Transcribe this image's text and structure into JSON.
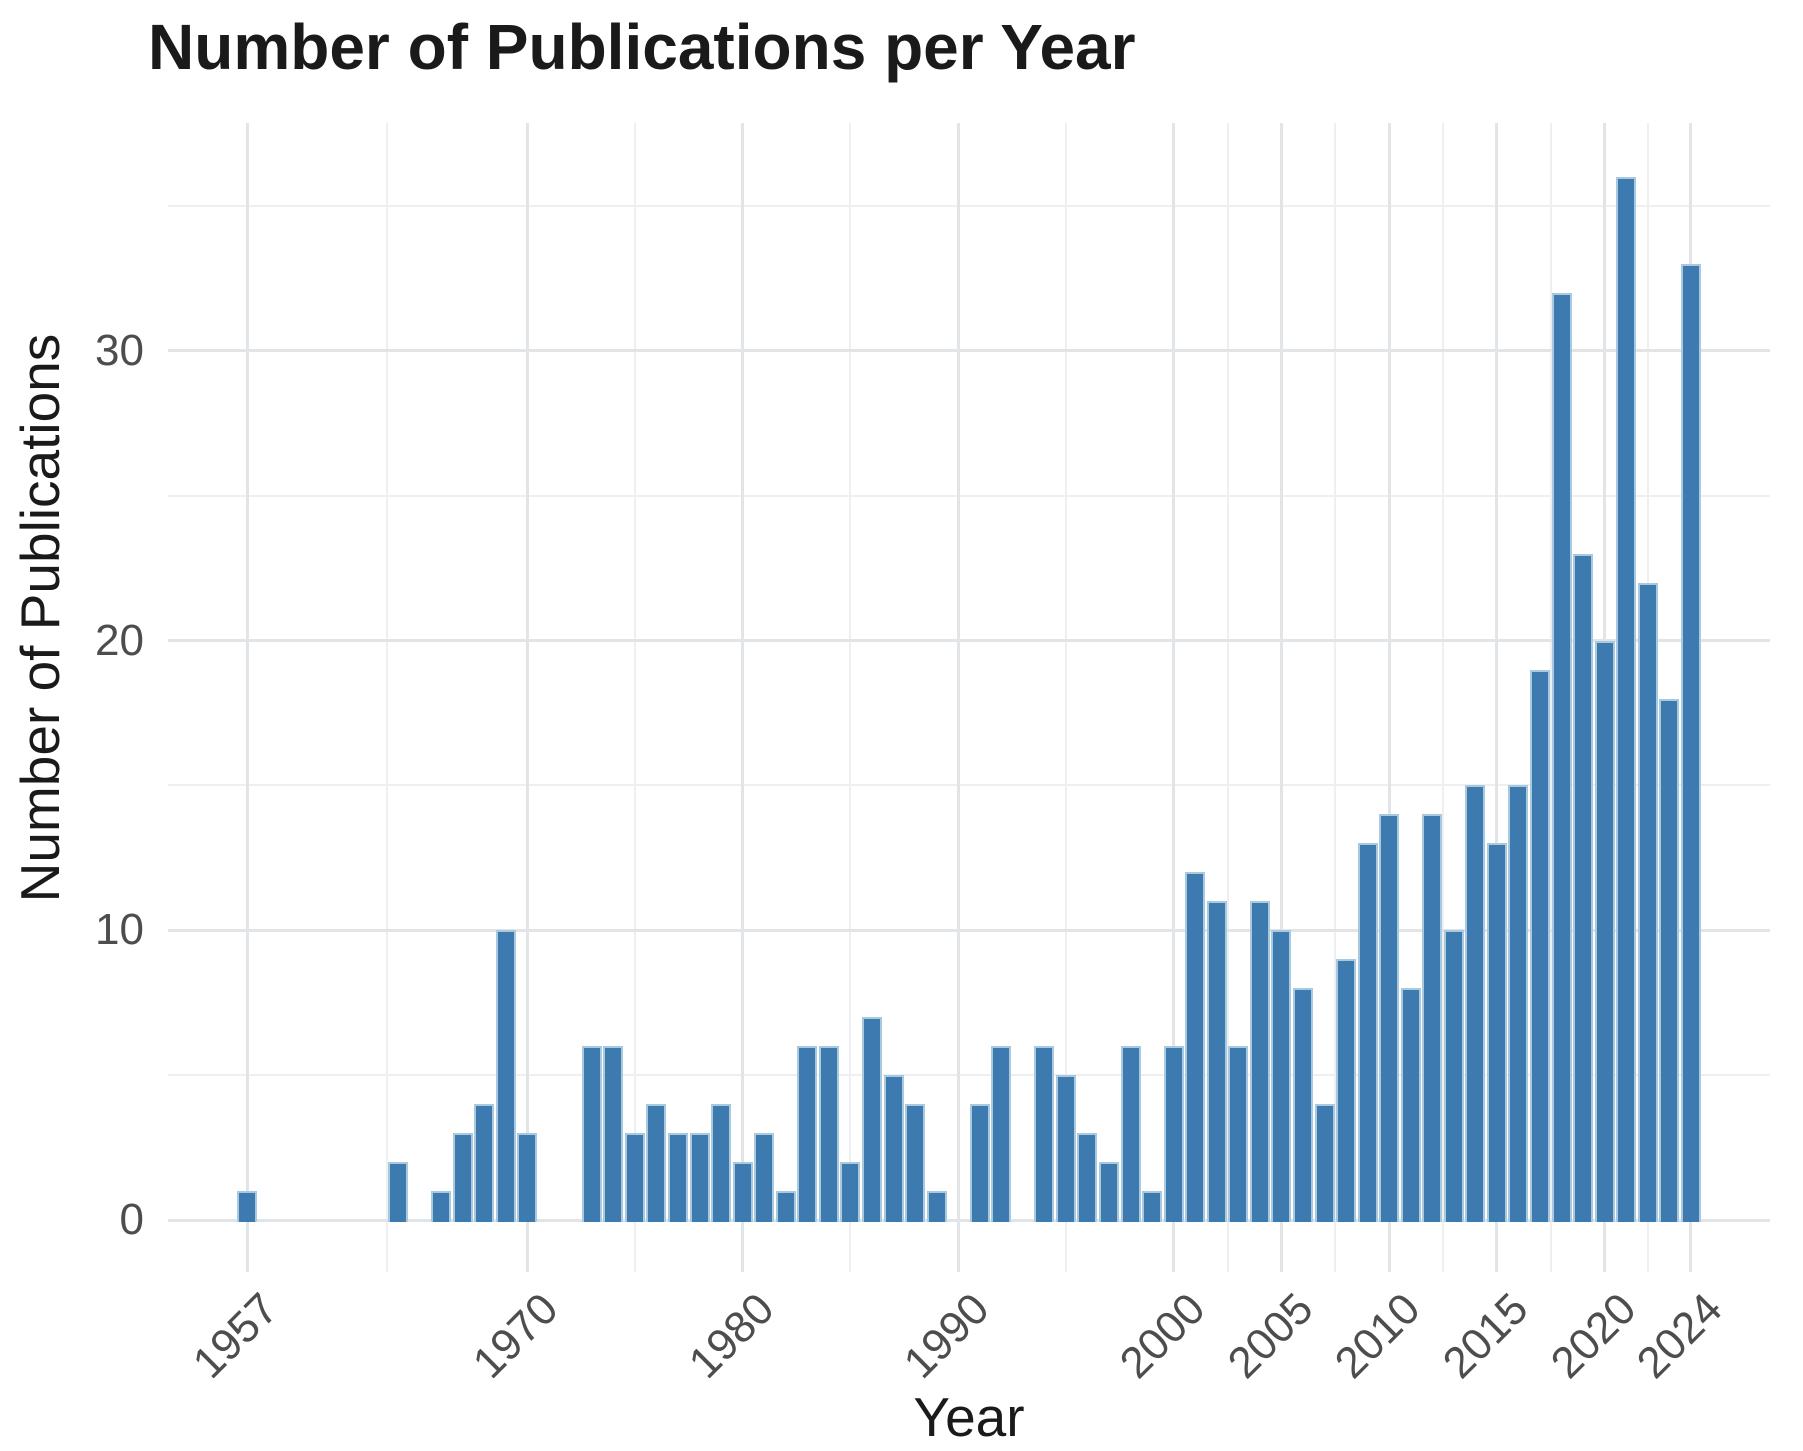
{
  "title": "Number of Publications per Year",
  "chart_data": {
    "type": "bar",
    "title": "Number of Publications per Year",
    "xlabel": "Year",
    "ylabel": "Number of Publications",
    "legend": "none",
    "grid": "on",
    "ylim": [
      0,
      37
    ],
    "y_ticks": [
      0,
      10,
      20,
      30
    ],
    "y_minor_ticks": [
      5,
      15,
      25,
      35
    ],
    "x_breaks": [
      1957,
      1970,
      1980,
      1990,
      2000,
      2005,
      2010,
      2015,
      2020,
      2024
    ],
    "x_break_labels": [
      "1957",
      "1970",
      "1980",
      "1990",
      "2000",
      "2005",
      "2010",
      "2015",
      "2020",
      "2024"
    ],
    "x_minor_breaks": [
      1963.5,
      1975,
      1985,
      1995,
      2002.5,
      2007.5,
      2012.5,
      2017.5,
      2022
    ],
    "years": [
      1957,
      1958,
      1959,
      1960,
      1961,
      1962,
      1963,
      1964,
      1965,
      1966,
      1967,
      1968,
      1969,
      1970,
      1971,
      1972,
      1973,
      1974,
      1975,
      1976,
      1977,
      1978,
      1979,
      1980,
      1981,
      1982,
      1983,
      1984,
      1985,
      1986,
      1987,
      1988,
      1989,
      1990,
      1991,
      1992,
      1993,
      1994,
      1995,
      1996,
      1997,
      1998,
      1999,
      2000,
      2001,
      2002,
      2003,
      2004,
      2005,
      2006,
      2007,
      2008,
      2009,
      2010,
      2011,
      2012,
      2013,
      2014,
      2015,
      2016,
      2017,
      2018,
      2019,
      2020,
      2021,
      2022,
      2023,
      2024
    ],
    "values": [
      1,
      0,
      0,
      0,
      0,
      0,
      0,
      2,
      0,
      1,
      3,
      4,
      10,
      3,
      0,
      0,
      6,
      6,
      3,
      4,
      3,
      3,
      4,
      2,
      3,
      1,
      6,
      6,
      2,
      7,
      5,
      4,
      1,
      0,
      4,
      6,
      0,
      6,
      5,
      3,
      2,
      6,
      1,
      6,
      12,
      11,
      6,
      11,
      10,
      8,
      4,
      9,
      13,
      14,
      8,
      14,
      10,
      15,
      13,
      15,
      19,
      32,
      23,
      20,
      36,
      22,
      18,
      33
    ],
    "bar_color": "#3D7AB0",
    "bar_border_color": "#A9C9DE",
    "major_grid_color": "#E2E5E8",
    "minor_grid_color": "#EDEFF1",
    "title_color": "#1A1A1A",
    "tick_label_color": "#4D4D4D",
    "background_color": "#FFFFFF"
  }
}
